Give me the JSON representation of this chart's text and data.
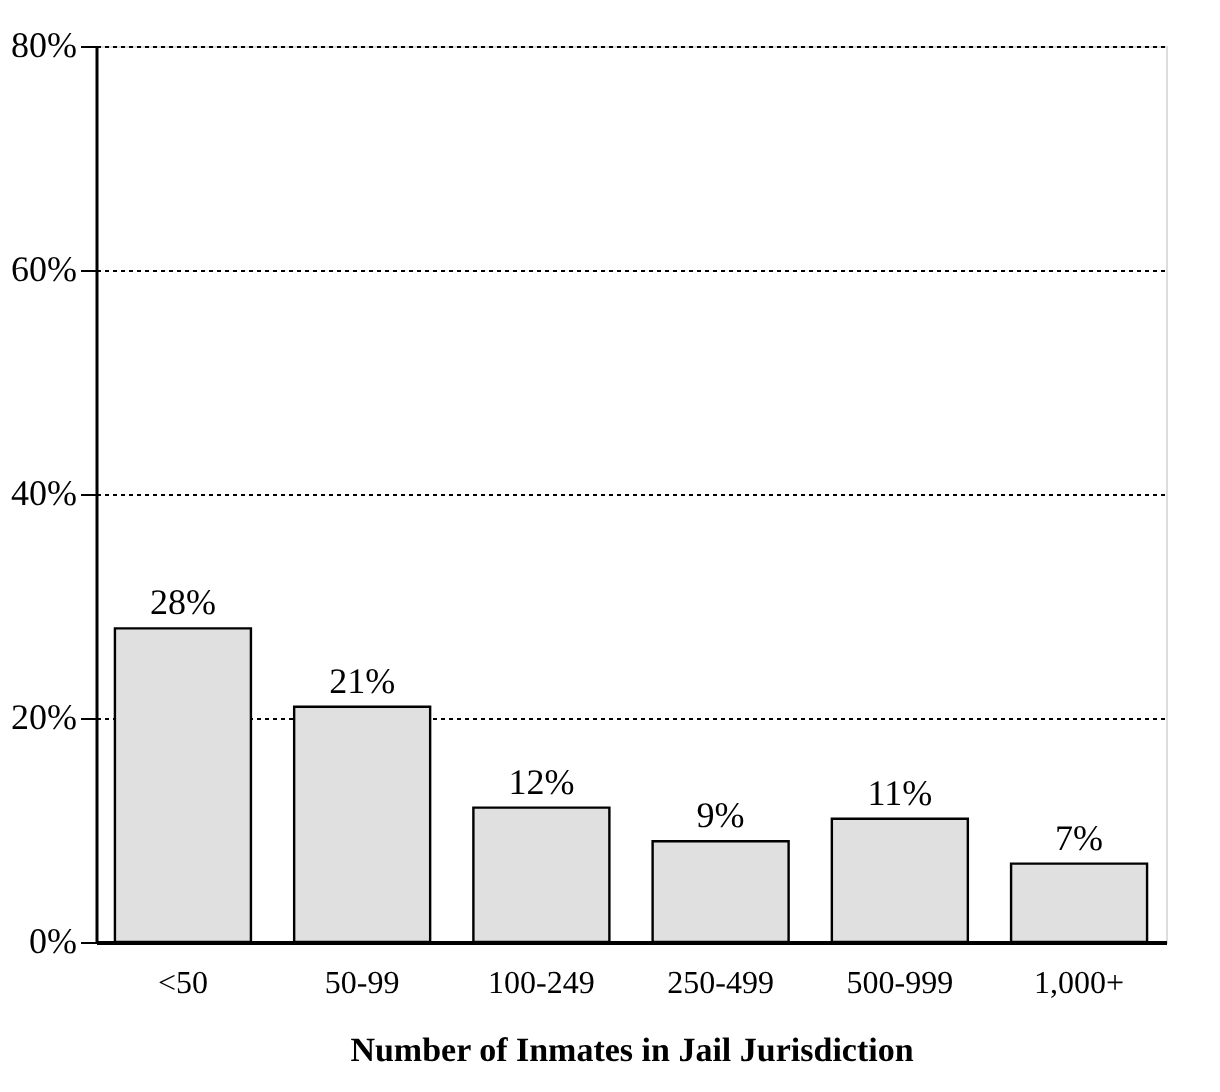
{
  "chart_data": {
    "type": "bar",
    "xlabel": "Number of Inmates in Jail Jurisdiction",
    "categories": [
      "<50",
      "50-99",
      "100-249",
      "250-499",
      "500-999",
      "1,000+"
    ],
    "values": [
      28,
      21,
      12,
      9,
      11,
      7
    ],
    "value_labels": [
      "28%",
      "21%",
      "12%",
      "9%",
      "11%",
      "7%"
    ],
    "color": "#e0e0e0",
    "ylim": [
      0,
      80
    ],
    "yticks": [
      {
        "value": 0,
        "label": "0%"
      },
      {
        "value": 20,
        "label": "20%"
      },
      {
        "value": 40,
        "label": "40%"
      },
      {
        "value": 60,
        "label": "60%"
      },
      {
        "value": 80,
        "label": "80%"
      }
    ],
    "grid": "y"
  }
}
